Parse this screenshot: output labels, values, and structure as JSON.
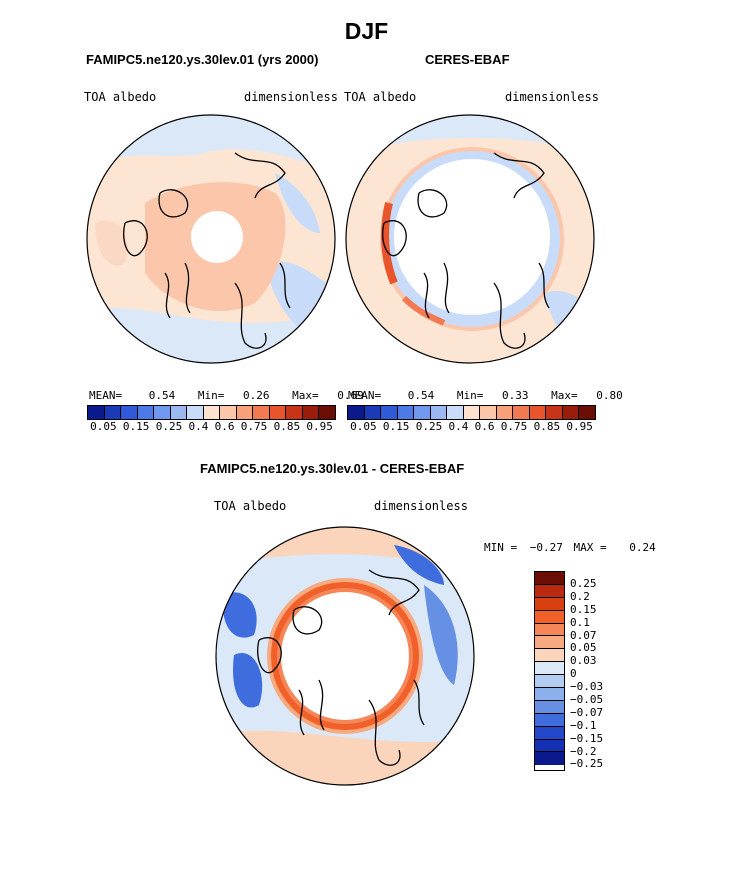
{
  "title": "DJF",
  "panels": {
    "model": {
      "title": "FAMIPC5.ne120.ys.30lev.01 (yrs 2000)",
      "left_label": "TOA albedo",
      "right_label": "dimensionless",
      "mean_label": "MEAN=",
      "mean": "0.54",
      "min_label": "Min=",
      "min": "0.26",
      "max_label": "Max=",
      "max": "0.69"
    },
    "obs": {
      "title": "CERES-EBAF",
      "left_label": "TOA albedo",
      "right_label": "dimensionless",
      "mean_label": "MEAN=",
      "mean": "0.54",
      "min_label": "Min=",
      "min": "0.33",
      "max_label": "Max=",
      "max": "0.80"
    },
    "diff": {
      "title": "FAMIPC5.ne120.ys.30lev.01 - CERES-EBAF",
      "left_label": "TOA albedo",
      "right_label": "dimensionless",
      "min_label": "MIN =",
      "min": "−0.27",
      "max_label": "MAX =",
      "max": "0.24"
    }
  },
  "colorbar_abs": {
    "colors": [
      "#0a1a8c",
      "#1a3ab8",
      "#2f5ad8",
      "#4c7ae6",
      "#6f98ee",
      "#9cb8f2",
      "#c8dbf8",
      "#fde2cf",
      "#fbc6aa",
      "#f7a07a",
      "#f27a52",
      "#e8552c",
      "#c83418",
      "#9a1d0c",
      "#6a0d05"
    ],
    "labels": [
      "0.05",
      "0.15",
      "0.25",
      "0.4",
      "0.6",
      "0.75",
      "0.85",
      "0.95"
    ]
  },
  "colorbar_diff": {
    "colors": [
      "#6a0d05",
      "#b92a10",
      "#d8400f",
      "#f2602a",
      "#f48658",
      "#f7a97f",
      "#fbd5bb",
      "#dbe8f7",
      "#b2cdf2",
      "#8cb0ec",
      "#6690e4",
      "#3f6ddd",
      "#2448cc",
      "#1430b4",
      "#0a1a8c"
    ],
    "labels": [
      "0.25",
      "0.2",
      "0.15",
      "0.1",
      "0.07",
      "0.05",
      "0.03",
      "0",
      "−0.03",
      "−0.05",
      "−0.07",
      "−0.1",
      "−0.15",
      "−0.2",
      "−0.25"
    ]
  }
}
